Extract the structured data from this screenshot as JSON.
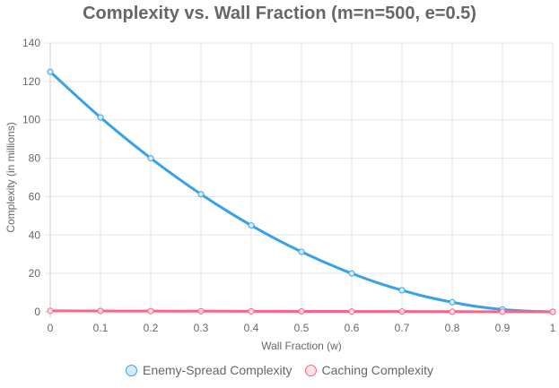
{
  "chart_data": {
    "type": "line",
    "title": "Complexity vs. Wall Fraction (m=n=500, e=0.5)",
    "xlabel": "Wall Fraction (w)",
    "ylabel": "Complexity (in millions)",
    "x": [
      0,
      0.1,
      0.2,
      0.3,
      0.4,
      0.5,
      0.6,
      0.7,
      0.8,
      0.9,
      1
    ],
    "x_tick_labels": [
      "0",
      "0.1",
      "0.2",
      "0.3",
      "0.4",
      "0.5",
      "0.6",
      "0.7",
      "0.8",
      "0.9",
      "1"
    ],
    "ylim": [
      0,
      140
    ],
    "y_ticks": [
      0,
      20,
      40,
      60,
      80,
      100,
      120,
      140
    ],
    "grid": true,
    "legend_position": "bottom",
    "series": [
      {
        "name": "Enemy-Spread Complexity",
        "color": "#36a2eb",
        "fill": "#d7ecfb",
        "values": [
          125,
          101.25,
          80,
          61.25,
          45,
          31.25,
          20,
          11.25,
          5,
          1.25,
          0
        ]
      },
      {
        "name": "Caching Complexity",
        "color": "#ff6384",
        "fill": "#ffe0e6",
        "values": [
          0.5,
          0.45,
          0.4,
          0.35,
          0.3,
          0.25,
          0.2,
          0.15,
          0.1,
          0.05,
          0
        ]
      }
    ]
  }
}
